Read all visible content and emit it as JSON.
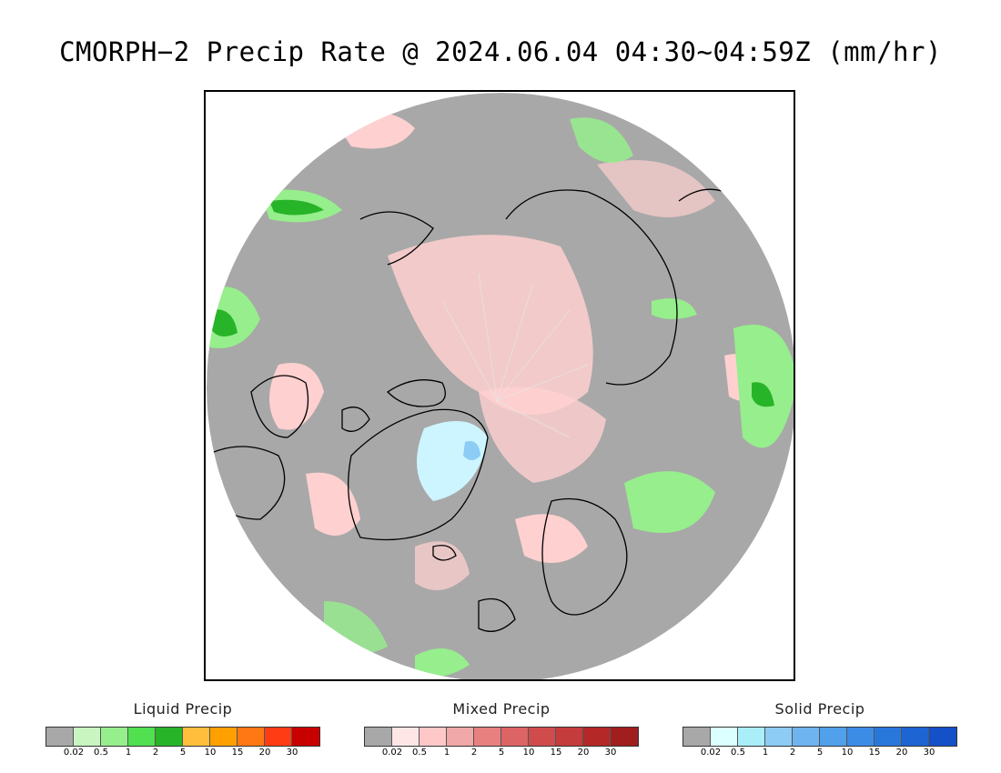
{
  "title": "CMORPH−2 Precip Rate @ 2024.06.04 04:30~04:59Z (mm/hr)",
  "map": {
    "projection": "north-polar-stereographic",
    "background_color": "#a8a8a8",
    "coastline_color": "#000000"
  },
  "legends": [
    {
      "title": "Liquid Precip",
      "colors": [
        "#a8a8a8",
        "#c8f5c0",
        "#96ee8c",
        "#50e050",
        "#28b428",
        "#ffbe3c",
        "#ffa000",
        "#ff7814",
        "#ff3c14",
        "#c80000"
      ],
      "ticks": [
        "0.02",
        "0.5",
        "1",
        "2",
        "5",
        "10",
        "15",
        "20",
        "30"
      ]
    },
    {
      "title": "Mixed Precip",
      "colors": [
        "#a8a8a8",
        "#ffe6e6",
        "#ffc8c8",
        "#f0a8a8",
        "#e88080",
        "#dc6464",
        "#d04c4c",
        "#c43c3c",
        "#b42828",
        "#a01e1e"
      ],
      "ticks": [
        "0.02",
        "0.5",
        "1",
        "2",
        "5",
        "10",
        "15",
        "20",
        "30"
      ]
    },
    {
      "title": "Solid Precip",
      "colors": [
        "#a8a8a8",
        "#dcffff",
        "#aaeefa",
        "#8cccf5",
        "#6eb4f0",
        "#50a0eb",
        "#3c8ce6",
        "#2878dc",
        "#1e64d2",
        "#1450c8"
      ],
      "ticks": [
        "0.02",
        "0.5",
        "1",
        "2",
        "5",
        "10",
        "15",
        "20",
        "30"
      ]
    }
  ]
}
